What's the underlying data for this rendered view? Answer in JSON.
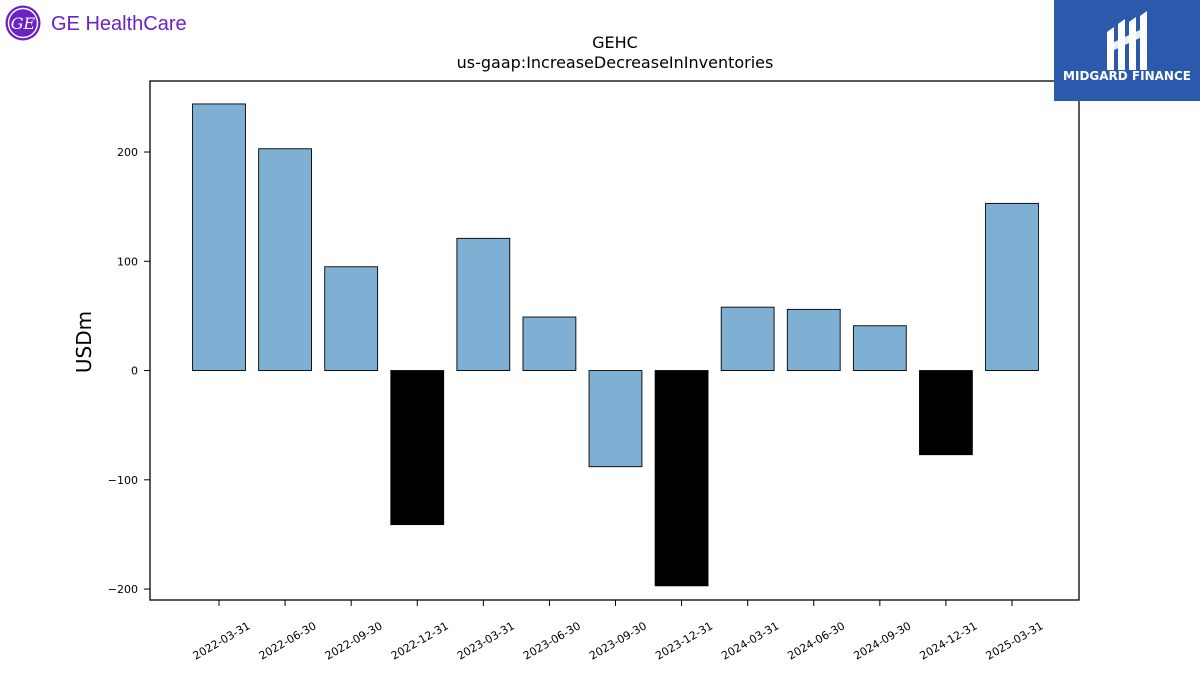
{
  "header": {
    "brand_logo_text": "GE HealthCare",
    "brand_color": "#6a22c4",
    "watermark_text": "MIDGARD FINANCE",
    "watermark_bg": "#2b5aad"
  },
  "chart_data": {
    "type": "bar",
    "title": "GEHC",
    "subtitle": "us-gaap:IncreaseDecreaseInInventories",
    "xlabel": "",
    "ylabel": "USDm",
    "ylim": [
      -210,
      265
    ],
    "yticks": [
      -200,
      -100,
      0,
      100,
      200
    ],
    "grid": false,
    "categories": [
      "2022-03-31",
      "2022-06-30",
      "2022-09-30",
      "2022-12-31",
      "2023-03-31",
      "2023-06-30",
      "2023-09-30",
      "2023-12-31",
      "2024-03-31",
      "2024-06-30",
      "2024-09-30",
      "2024-12-31",
      "2025-03-31"
    ],
    "values": [
      244,
      203,
      95,
      -141,
      121,
      49,
      -88,
      -197,
      58,
      56,
      41,
      -77,
      153
    ],
    "bar_colors": [
      "#7fb0d3",
      "#7fb0d3",
      "#7fb0d3",
      "#000000",
      "#7fb0d3",
      "#7fb0d3",
      "#7fb0d3",
      "#000000",
      "#7fb0d3",
      "#7fb0d3",
      "#7fb0d3",
      "#000000",
      "#7fb0d3"
    ]
  }
}
